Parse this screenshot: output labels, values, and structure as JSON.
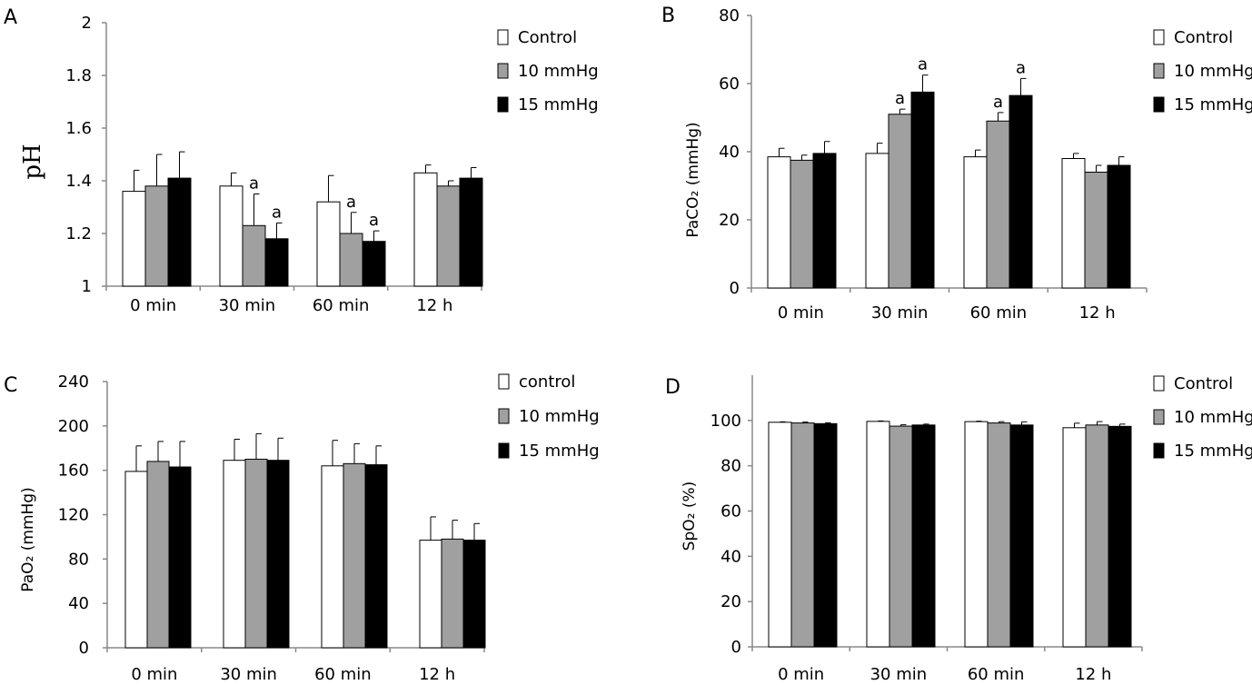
{
  "chart_data": [
    {
      "type": "bar",
      "panel": "A",
      "ylabel": "pH",
      "ylim": [
        1,
        2
      ],
      "yticks": [
        "1",
        "1.2",
        "1.4",
        "1.6",
        "1.8",
        "2"
      ],
      "categories": [
        "0 min",
        "30 min",
        "60 min",
        "12 h"
      ],
      "legend": {
        "placement": "top-right"
      },
      "series": [
        {
          "name": "Control",
          "color": "#ffffff",
          "values": [
            1.36,
            1.38,
            1.32,
            1.43
          ],
          "errors": [
            0.08,
            0.05,
            0.1,
            0.03
          ],
          "annotations": [
            "",
            "",
            "",
            ""
          ]
        },
        {
          "name": "10 mmHg",
          "color": "#a0a0a0",
          "values": [
            1.38,
            1.23,
            1.2,
            1.38
          ],
          "errors": [
            0.12,
            0.12,
            0.08,
            0.02
          ],
          "annotations": [
            "",
            "a",
            "a",
            ""
          ]
        },
        {
          "name": "15 mmHg",
          "color": "#000000",
          "values": [
            1.41,
            1.18,
            1.17,
            1.41
          ],
          "errors": [
            0.1,
            0.06,
            0.04,
            0.04
          ],
          "annotations": [
            "",
            "a",
            "a",
            ""
          ]
        }
      ]
    },
    {
      "type": "bar",
      "panel": "B",
      "ylabel": "PaCO₂ (mmHg)",
      "ylim": [
        0,
        80
      ],
      "yticks": [
        "0",
        "20",
        "40",
        "60",
        "80"
      ],
      "categories": [
        "0 min",
        "30 min",
        "60 min",
        "12 h"
      ],
      "legend": {
        "placement": "top-right"
      },
      "series": [
        {
          "name": "Control",
          "color": "#ffffff",
          "values": [
            38.5,
            39.5,
            38.5,
            38.0
          ],
          "errors": [
            2.5,
            3.0,
            2.0,
            1.5
          ],
          "annotations": [
            "",
            "",
            "",
            ""
          ]
        },
        {
          "name": "10 mmHg",
          "color": "#a0a0a0",
          "values": [
            37.5,
            51.0,
            49.0,
            34.0
          ],
          "errors": [
            1.5,
            1.5,
            2.5,
            2.0
          ],
          "annotations": [
            "",
            "a",
            "a",
            ""
          ]
        },
        {
          "name": "15 mmHg",
          "color": "#000000",
          "values": [
            39.5,
            57.5,
            56.5,
            36.0
          ],
          "errors": [
            3.5,
            5.0,
            5.0,
            2.5
          ],
          "annotations": [
            "",
            "a",
            "a",
            ""
          ]
        }
      ]
    },
    {
      "type": "bar",
      "panel": "C",
      "ylabel": "PaO₂ (mmHg)",
      "ylim": [
        0,
        240
      ],
      "yticks": [
        "0",
        "40",
        "80",
        "120",
        "160",
        "200",
        "240"
      ],
      "categories": [
        "0 min",
        "30 min",
        "60 min",
        "12 h"
      ],
      "legend": {
        "placement": "top-right"
      },
      "series": [
        {
          "name": "control",
          "color": "#ffffff",
          "values": [
            159,
            169,
            164,
            97
          ],
          "errors": [
            23,
            19,
            23,
            21
          ],
          "annotations": [
            "",
            "",
            "",
            ""
          ]
        },
        {
          "name": "10 mmHg",
          "color": "#a0a0a0",
          "values": [
            168,
            170,
            166,
            98
          ],
          "errors": [
            18,
            23,
            18,
            17
          ],
          "annotations": [
            "",
            "",
            "",
            ""
          ]
        },
        {
          "name": "15 mmHg",
          "color": "#000000",
          "values": [
            163,
            169,
            165,
            97
          ],
          "errors": [
            23,
            20,
            17,
            15
          ],
          "annotations": [
            "",
            "",
            "",
            ""
          ]
        }
      ]
    },
    {
      "type": "bar",
      "panel": "D",
      "ylabel": "SpO₂ (%)",
      "ylim": [
        0,
        120
      ],
      "yticks": [
        "0",
        "20",
        "40",
        "60",
        "80",
        "100"
      ],
      "categories": [
        "0 min",
        "30 min",
        "60 min",
        "12 h"
      ],
      "legend": {
        "placement": "top-right"
      },
      "series": [
        {
          "name": "Control",
          "color": "#ffffff",
          "values": [
            99.2,
            99.6,
            99.5,
            96.8
          ],
          "errors": [
            0.2,
            0.2,
            0.2,
            2.0
          ],
          "annotations": [
            "",
            "",
            "",
            ""
          ]
        },
        {
          "name": "10 mmHg",
          "color": "#a0a0a0",
          "values": [
            98.9,
            97.5,
            98.9,
            98.0
          ],
          "errors": [
            0.4,
            0.6,
            0.6,
            1.5
          ],
          "annotations": [
            "",
            "",
            "",
            ""
          ]
        },
        {
          "name": "15 mmHg",
          "color": "#000000",
          "values": [
            98.6,
            98.0,
            98.0,
            97.4
          ],
          "errors": [
            0.4,
            0.4,
            1.4,
            1.0
          ],
          "annotations": [
            "",
            "",
            "",
            ""
          ]
        }
      ]
    }
  ]
}
